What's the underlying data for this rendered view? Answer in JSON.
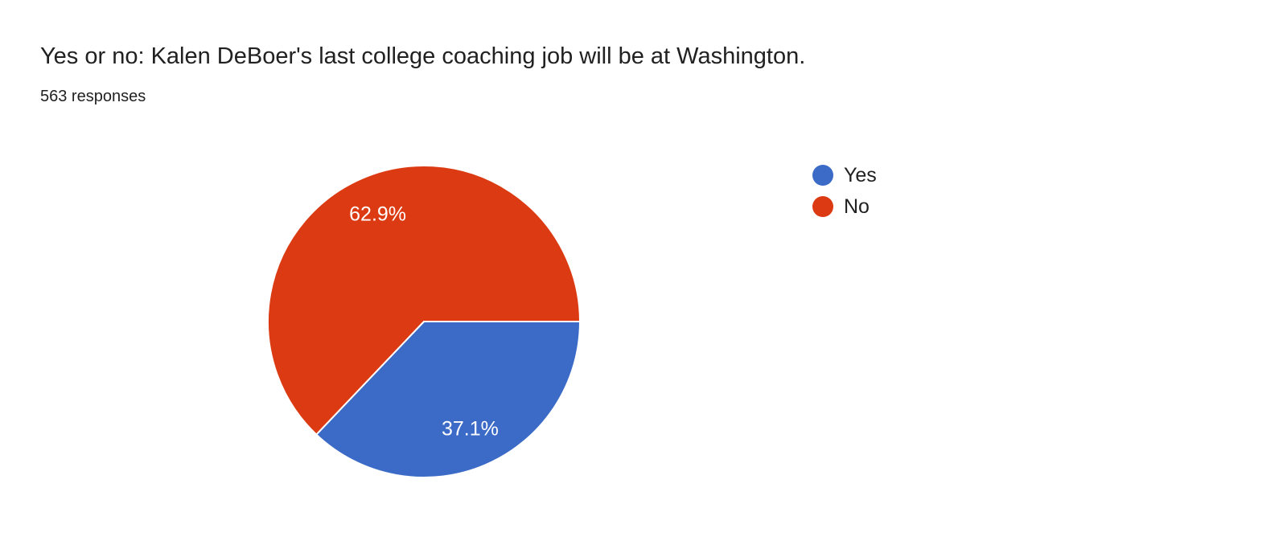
{
  "chart_data": {
    "type": "pie",
    "title": "Yes or no: Kalen DeBoer's last college coaching job will be at Washington.",
    "responses_label": "563 responses",
    "total_responses": 563,
    "legend_position": "right",
    "start_angle_deg": 0,
    "direction": "clockwise",
    "slice_label_color": "#ffffff",
    "slice_border_color": "#ffffff",
    "text_color": "#212121",
    "slices": [
      {
        "label": "Yes",
        "percent": 37.1,
        "percent_label": "37.1%",
        "color": "#3b6bc7"
      },
      {
        "label": "No",
        "percent": 62.9,
        "percent_label": "62.9%",
        "color": "#dc3a12"
      }
    ]
  }
}
